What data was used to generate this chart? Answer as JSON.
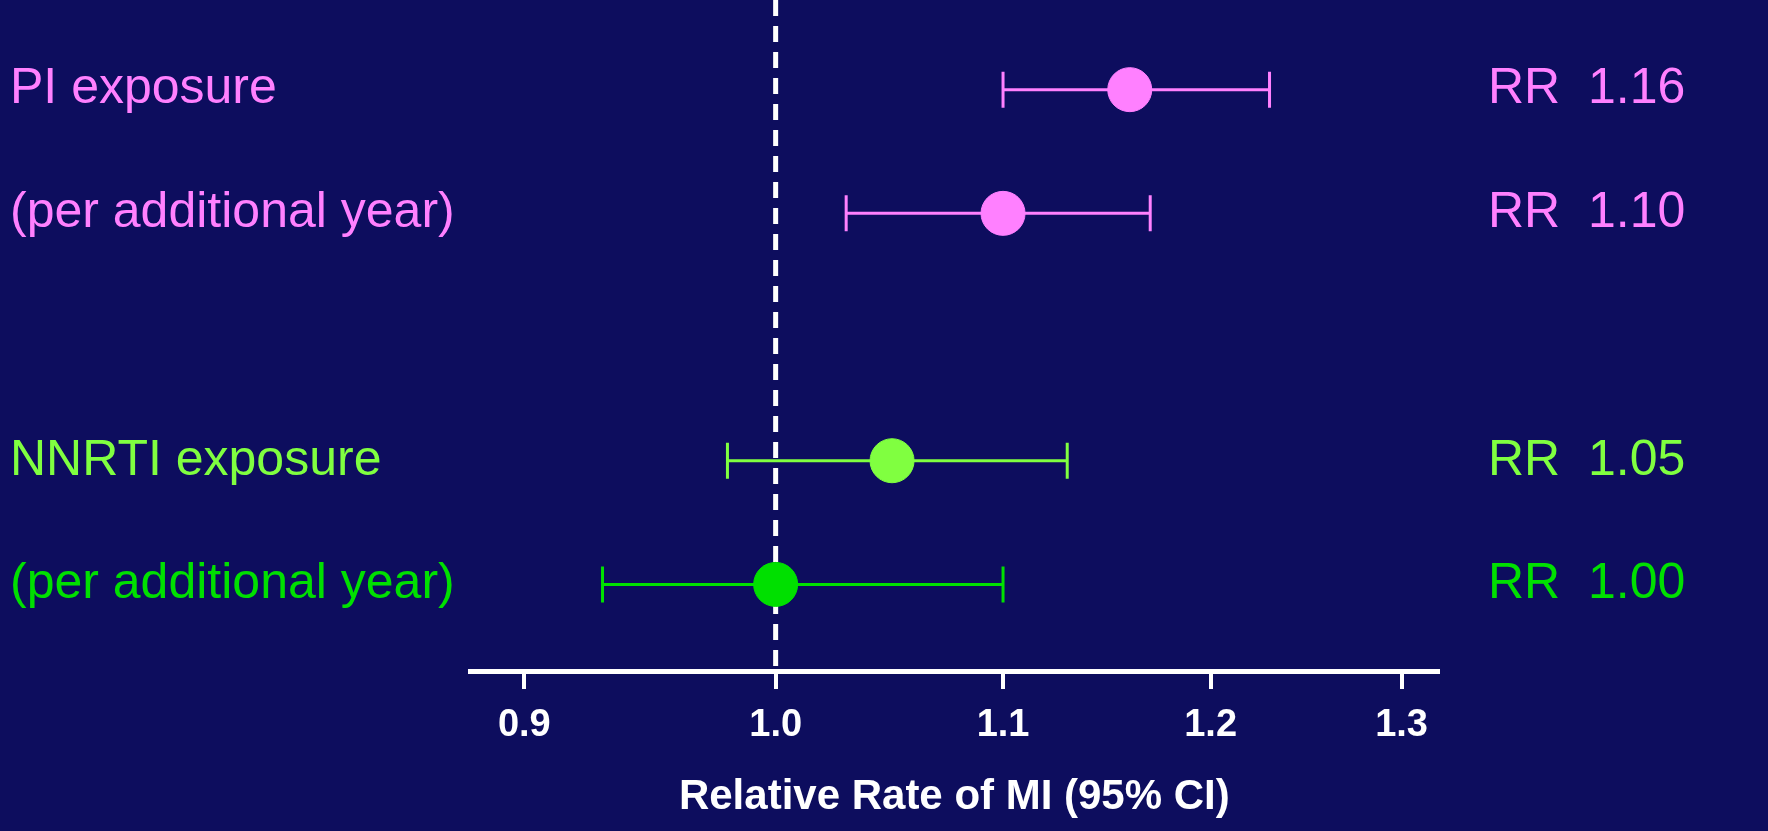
{
  "chart_data": {
    "type": "scatter",
    "orientation": "horizontal",
    "xlabel": "Relative Rate of MI (95% CI)",
    "categories": [
      "PI exposure",
      "(per additional year)",
      null,
      "NNRTI exposure",
      "(per additional year)"
    ],
    "values": [
      1.16,
      1.1,
      null,
      1.05,
      1.0
    ],
    "colors": [
      "#ff80ff",
      "#ff80ff",
      null,
      "#80ff40",
      "#00e000"
    ],
    "errors": [
      [
        1.1,
        1.23
      ],
      [
        1.03,
        1.17
      ],
      null,
      [
        0.98,
        1.13
      ],
      [
        0.93,
        1.1
      ]
    ],
    "value_labels": [
      "RR  1.16",
      "RR  1.10",
      null,
      "RR  1.05",
      "RR  1.00"
    ],
    "log": "x",
    "xlim": [
      0.88,
      1.32
    ],
    "xticks": [
      0.9,
      {
        "value": 1,
        "label": "1.0"
      },
      1.1,
      1.2,
      1.3
    ],
    "ref_lines": [
      {
        "axis": "x",
        "value": 1,
        "color": "#ffffff",
        "line_style": "dashed"
      }
    ],
    "marker": "circle",
    "legend": false,
    "grid": false
  }
}
